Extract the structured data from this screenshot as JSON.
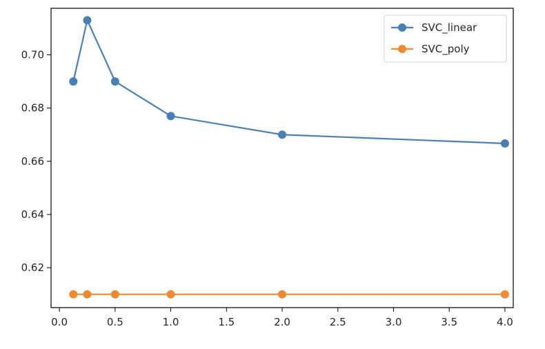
{
  "chart_data": {
    "type": "line",
    "title": "",
    "xlabel": "",
    "ylabel": "",
    "x": [
      0.125,
      0.25,
      0.5,
      1.0,
      2.0,
      4.0
    ],
    "series": [
      {
        "name": "SVC_linear",
        "color": "#4a7fb5",
        "values": [
          0.69,
          0.713,
          0.69,
          0.677,
          0.67,
          0.6667
        ],
        "marker": "circle"
      },
      {
        "name": "SVC_poly",
        "color": "#f08a32",
        "values": [
          0.61,
          0.61,
          0.61,
          0.61,
          0.61,
          0.61
        ],
        "marker": "circle"
      }
    ],
    "xlim": [
      -0.075,
      4.075
    ],
    "ylim": [
      0.605,
      0.7175
    ],
    "xticks": [
      0.0,
      0.5,
      1.0,
      1.5,
      2.0,
      2.5,
      3.0,
      3.5,
      4.0
    ],
    "xtick_labels": [
      "0.0",
      "0.5",
      "1.0",
      "1.5",
      "2.0",
      "2.5",
      "3.0",
      "3.5",
      "4.0"
    ],
    "yticks": [
      0.62,
      0.64,
      0.66,
      0.68,
      0.7
    ],
    "ytick_labels": [
      "0.62",
      "0.64",
      "0.66",
      "0.68",
      "0.70"
    ],
    "grid": false,
    "legend_position": "top-right"
  }
}
